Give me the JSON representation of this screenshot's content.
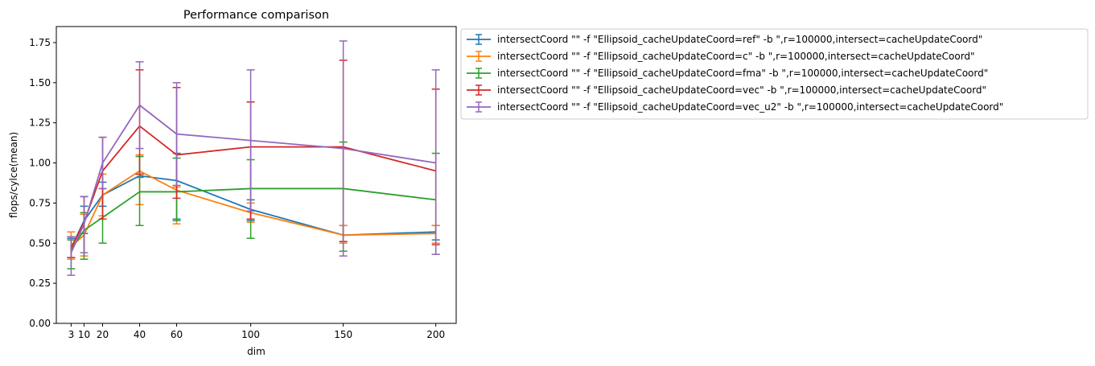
{
  "chart_data": {
    "type": "line",
    "title": "Performance comparison",
    "xlabel": "dim",
    "ylabel": "flops/cylce(mean)",
    "x": [
      3,
      10,
      20,
      40,
      60,
      100,
      150,
      200
    ],
    "x_tick_labels": [
      "3",
      "10",
      "20",
      "40",
      "60",
      "100",
      "150",
      "200"
    ],
    "y_ticks": [
      0.0,
      0.25,
      0.5,
      0.75,
      1.0,
      1.25,
      1.5,
      1.75
    ],
    "y_tick_labels": [
      "0.00",
      "0.25",
      "0.50",
      "0.75",
      "1.00",
      "1.25",
      "1.50",
      "1.75"
    ],
    "xlim": [
      -5,
      211
    ],
    "ylim": [
      0,
      1.85
    ],
    "grid": false,
    "legend_position": "outside upper right",
    "error_bars": true,
    "series": [
      {
        "name": "intersectCoord \"\" -f \"Ellipsoid_cacheUpdateCoord=ref\" -b \",r=100000,intersect=cacheUpdateCoord\"",
        "color": "#1f77b4",
        "values": [
          0.47,
          0.64,
          0.8,
          0.92,
          0.89,
          0.71,
          0.55,
          0.57
        ],
        "err_low": [
          0.41,
          0.56,
          0.73,
          0.91,
          0.65,
          0.64,
          0.51,
          0.52
        ],
        "err_high": [
          0.53,
          0.73,
          0.88,
          0.93,
          1.06,
          0.77,
          0.61,
          0.61
        ]
      },
      {
        "name": "intersectCoord \"\" -f \"Ellipsoid_cacheUpdateCoord=c\" -b \",r=100000,intersect=cacheUpdateCoord\"",
        "color": "#ff7f0e",
        "values": [
          0.48,
          0.55,
          0.8,
          0.95,
          0.83,
          0.69,
          0.55,
          0.56
        ],
        "err_low": [
          0.4,
          0.42,
          0.67,
          0.74,
          0.62,
          0.63,
          0.5,
          0.5
        ],
        "err_high": [
          0.57,
          0.68,
          0.93,
          1.05,
          0.85,
          0.75,
          0.61,
          0.61
        ]
      },
      {
        "name": "intersectCoord \"\" -f \"Ellipsoid_cacheUpdateCoord=fma\" -b \",r=100000,intersect=cacheUpdateCoord\"",
        "color": "#2ca02c",
        "values": [
          0.46,
          0.58,
          0.66,
          0.82,
          0.82,
          0.84,
          0.84,
          0.77
        ],
        "err_low": [
          0.34,
          0.4,
          0.5,
          0.61,
          0.64,
          0.53,
          0.45,
          0.43
        ],
        "err_high": [
          0.52,
          0.69,
          0.84,
          1.04,
          1.03,
          1.02,
          1.13,
          1.06
        ]
      },
      {
        "name": "intersectCoord \"\" -f \"Ellipsoid_cacheUpdateCoord=vec\" -b \",r=100000,intersect=cacheUpdateCoord\"",
        "color": "#d62728",
        "values": [
          0.47,
          0.63,
          0.95,
          1.23,
          1.05,
          1.1,
          1.1,
          0.95
        ],
        "err_low": [
          0.41,
          0.44,
          0.65,
          0.93,
          0.78,
          0.65,
          0.51,
          0.49
        ],
        "err_high": [
          0.54,
          0.79,
          1.16,
          1.58,
          1.47,
          1.38,
          1.64,
          1.46
        ]
      },
      {
        "name": "intersectCoord \"\" -f \"Ellipsoid_cacheUpdateCoord=vec_u2\" -b \",r=100000,intersect=cacheUpdateCoord\"",
        "color": "#9467bd",
        "values": [
          0.44,
          0.62,
          1.0,
          1.36,
          1.18,
          1.14,
          1.09,
          1.0
        ],
        "err_low": [
          0.3,
          0.44,
          0.84,
          1.09,
          0.86,
          0.7,
          0.42,
          0.43
        ],
        "err_high": [
          0.54,
          0.79,
          1.16,
          1.63,
          1.5,
          1.58,
          1.76,
          1.58
        ]
      }
    ]
  }
}
